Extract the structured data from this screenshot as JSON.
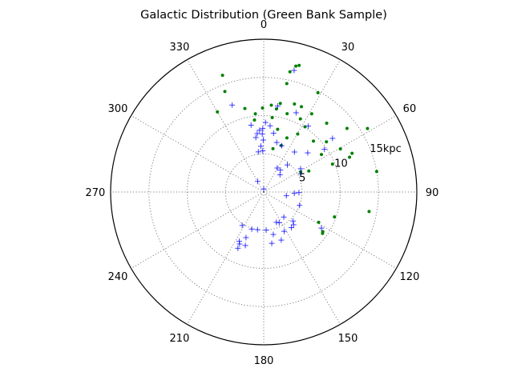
{
  "chart_data": {
    "type": "scatter",
    "projection": "polar",
    "title": "Galactic Distribution (Green Bank Sample)",
    "theta_direction": "clockwise",
    "theta_zero": "top",
    "theta_ticks": [
      "0",
      "30",
      "60",
      "90",
      "120",
      "150",
      "180",
      "210",
      "240",
      "270",
      "300",
      "330"
    ],
    "theta_values_deg": [
      0,
      30,
      60,
      90,
      120,
      150,
      180,
      210,
      240,
      270,
      300,
      330
    ],
    "r_max": 20,
    "r_ticks": [
      5,
      10,
      15
    ],
    "r_tick_labels": [
      "5",
      "10",
      "15kpc"
    ],
    "r_label_angle_deg": 67.5,
    "grid": true,
    "series": [
      {
        "marker": "dot",
        "color": "#008000",
        "points": [
          {
            "theta": 15.6,
            "r": 17.2
          },
          {
            "theta": 14.3,
            "r": 17.0
          },
          {
            "theta": 12.3,
            "r": 16.1
          },
          {
            "theta": 28.6,
            "r": 14.8
          },
          {
            "theta": -19.4,
            "r": 16.2
          },
          {
            "theta": -21.1,
            "r": 14.1
          },
          {
            "theta": 12.0,
            "r": 14.5
          },
          {
            "theta": 19.2,
            "r": 12.2
          },
          {
            "theta": 10.6,
            "r": 11.8
          },
          {
            "theta": 5.0,
            "r": 11.4
          },
          {
            "theta": 23.8,
            "r": 12.2
          },
          {
            "theta": -30.0,
            "r": 12.1
          },
          {
            "theta": -12.7,
            "r": 11.2
          },
          {
            "theta": 52.6,
            "r": 13.7
          },
          {
            "theta": 58.5,
            "r": 15.9
          },
          {
            "theta": 42.4,
            "r": 12.2
          },
          {
            "theta": 31.5,
            "r": 12.0
          },
          {
            "theta": 8.7,
            "r": 11.0
          },
          {
            "theta": 16.6,
            "r": 10.7
          },
          {
            "theta": -0.8,
            "r": 11.0
          },
          {
            "theta": 26.6,
            "r": 10.7
          },
          {
            "theta": -6.1,
            "r": 10.3
          },
          {
            "theta": 32.3,
            "r": 10.1
          },
          {
            "theta": -7.3,
            "r": 9.5
          },
          {
            "theta": 6.5,
            "r": 9.8
          },
          {
            "theta": 51.3,
            "r": 10.5
          },
          {
            "theta": 30.3,
            "r": 8.8
          },
          {
            "theta": 12.5,
            "r": 8.4
          },
          {
            "theta": 44.3,
            "r": 9.3
          },
          {
            "theta": 60.6,
            "r": 11.5
          },
          {
            "theta": 23.2,
            "r": 7.7
          },
          {
            "theta": 56.9,
            "r": 9.0
          },
          {
            "theta": 12.0,
            "r": 5.8
          },
          {
            "theta": 20.6,
            "r": 6.5
          },
          {
            "theta": 61.5,
            "r": 5.5
          },
          {
            "theta": 65.0,
            "r": 6.5
          },
          {
            "theta": 67.9,
            "r": 9.7
          },
          {
            "theta": 67.9,
            "r": 12.1
          },
          {
            "theta": 66.3,
            "r": 12.6
          },
          {
            "theta": 79.7,
            "r": 15.0
          },
          {
            "theta": 118.9,
            "r": 8.2
          },
          {
            "theta": 125.2,
            "r": 9.4
          },
          {
            "theta": 123.9,
            "r": 9.3
          },
          {
            "theta": 109.4,
            "r": 9.8
          },
          {
            "theta": 100.5,
            "r": 14.0
          }
        ]
      },
      {
        "marker": "plus",
        "color": "#0000ff",
        "points": [
          {
            "theta": 14.0,
            "r": 16.4
          },
          {
            "theta": -19.9,
            "r": 12.1
          },
          {
            "theta": 9.2,
            "r": 11.4
          },
          {
            "theta": 22.2,
            "r": 11.2
          },
          {
            "theta": 34.0,
            "r": 10.4
          },
          {
            "theta": 52.0,
            "r": 11.4
          },
          {
            "theta": 1.5,
            "r": 9.1
          },
          {
            "theta": -10.7,
            "r": 8.9
          },
          {
            "theta": 5.5,
            "r": 8.7
          },
          {
            "theta": -0.9,
            "r": 8.3
          },
          {
            "theta": -3.8,
            "r": 8.1
          },
          {
            "theta": -1.4,
            "r": 7.6
          },
          {
            "theta": -6.3,
            "r": 7.7
          },
          {
            "theta": -8.2,
            "r": 7.2
          },
          {
            "theta": 9.5,
            "r": 7.8
          },
          {
            "theta": 14.7,
            "r": 6.7
          },
          {
            "theta": -0.5,
            "r": 6.8
          },
          {
            "theta": -3.5,
            "r": 6.0
          },
          {
            "theta": -7.6,
            "r": 5.3
          },
          {
            "theta": -1.4,
            "r": 5.4
          },
          {
            "theta": 21.2,
            "r": 6.5
          },
          {
            "theta": 37.5,
            "r": 6.6
          },
          {
            "theta": 48.3,
            "r": 7.7
          },
          {
            "theta": 54.8,
            "r": 9.7
          },
          {
            "theta": 57.7,
            "r": 5.7
          },
          {
            "theta": 41.1,
            "r": 4.7
          },
          {
            "theta": 63.8,
            "r": 5.4
          },
          {
            "theta": 37.2,
            "r": 3.6
          },
          {
            "theta": 29.3,
            "r": 3.6
          },
          {
            "theta": 43.3,
            "r": 3.1
          },
          {
            "theta": -29.5,
            "r": 1.6
          },
          {
            "theta": 0.0,
            "r": 0.4
          },
          {
            "theta": 99.3,
            "r": 3.0
          },
          {
            "theta": 91.0,
            "r": 4.6
          },
          {
            "theta": 92.4,
            "r": 4.0
          },
          {
            "theta": 141.3,
            "r": 4.2
          },
          {
            "theta": 110.5,
            "r": 5.0
          },
          {
            "theta": 134.7,
            "r": 5.4
          },
          {
            "theta": 153.3,
            "r": 4.5
          },
          {
            "theta": 157.4,
            "r": 4.3
          },
          {
            "theta": 142.2,
            "r": 5.9
          },
          {
            "theta": 137.7,
            "r": 5.8
          },
          {
            "theta": 152.6,
            "r": 5.8
          },
          {
            "theta": 122.1,
            "r": 8.9
          },
          {
            "theta": -162.2,
            "r": 5.1
          },
          {
            "theta": -147.3,
            "r": 5.2
          },
          {
            "theta": -170.7,
            "r": 5.0
          },
          {
            "theta": 176.3,
            "r": 5.0
          },
          {
            "theta": -158.8,
            "r": 6.4
          },
          {
            "theta": -153.7,
            "r": 7.2
          },
          {
            "theta": -161.1,
            "r": 7.4
          },
          {
            "theta": -155.1,
            "r": 7.5
          },
          {
            "theta": -155.4,
            "r": 8.1
          },
          {
            "theta": 171.1,
            "r": 6.8
          },
          {
            "theta": 160.0,
            "r": 6.7
          },
          {
            "theta": 167.3,
            "r": 5.7
          }
        ]
      }
    ]
  }
}
